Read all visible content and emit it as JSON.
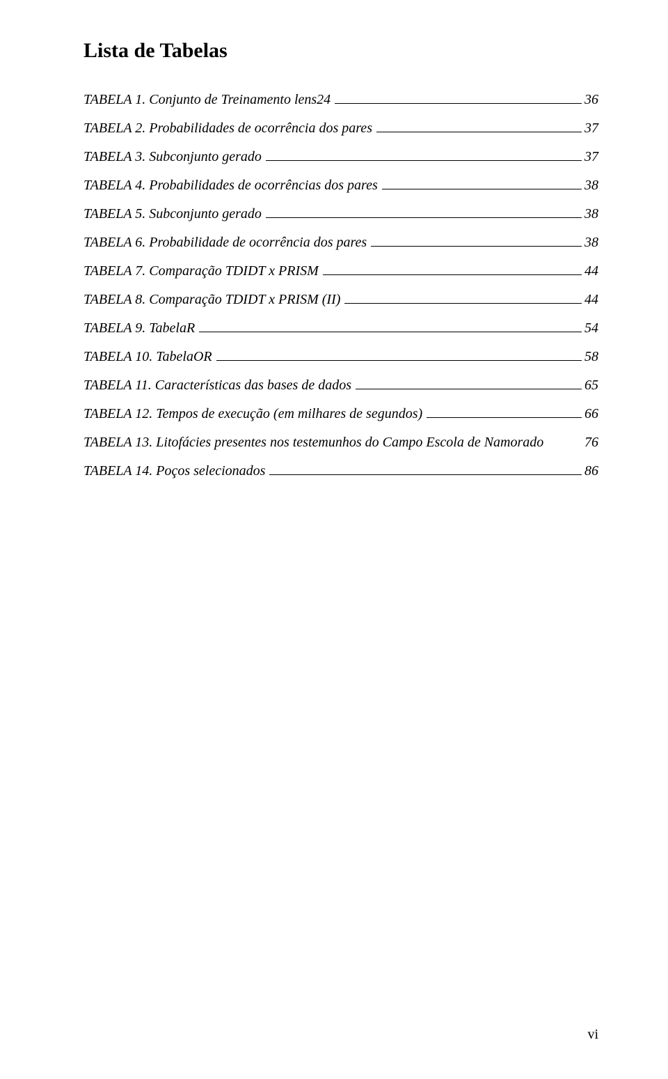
{
  "title": "Lista de Tabelas",
  "entries": [
    {
      "label": "TABELA 1. Conjunto de Treinamento lens24",
      "page": "36",
      "leader": true
    },
    {
      "label": "TABELA 2. Probabilidades de ocorrência dos pares",
      "page": "37",
      "leader": true
    },
    {
      "label": "TABELA 3. Subconjunto gerado",
      "page": "37",
      "leader": true
    },
    {
      "label": "TABELA 4. Probabilidades de ocorrências dos pares",
      "page": "38",
      "leader": true
    },
    {
      "label": "TABELA 5. Subconjunto gerado",
      "page": "38",
      "leader": true
    },
    {
      "label": "TABELA 6. Probabilidade de ocorrência dos pares",
      "page": "38",
      "leader": true
    },
    {
      "label": "TABELA 7. Comparação TDIDT x PRISM",
      "page": "44",
      "leader": true
    },
    {
      "label": "TABELA 8. Comparação TDIDT x PRISM (II)",
      "page": "44",
      "leader": true
    },
    {
      "label": "TABELA 9. TabelaR",
      "page": "54",
      "leader": true
    },
    {
      "label": "TABELA 10. TabelaOR",
      "page": "58",
      "leader": true
    },
    {
      "label": "TABELA 11. Características das bases de dados",
      "page": "65",
      "leader": true
    },
    {
      "label": "TABELA 12. Tempos de execução (em milhares de segundos)",
      "page": "66",
      "leader": true
    },
    {
      "label": "TABELA 13. Litofácies presentes nos testemunhos do Campo Escola de Namorado",
      "page": "76",
      "leader": false
    },
    {
      "label": "TABELA 14. Poços selecionados",
      "page": "86",
      "leader": true
    }
  ],
  "footer": "vi"
}
